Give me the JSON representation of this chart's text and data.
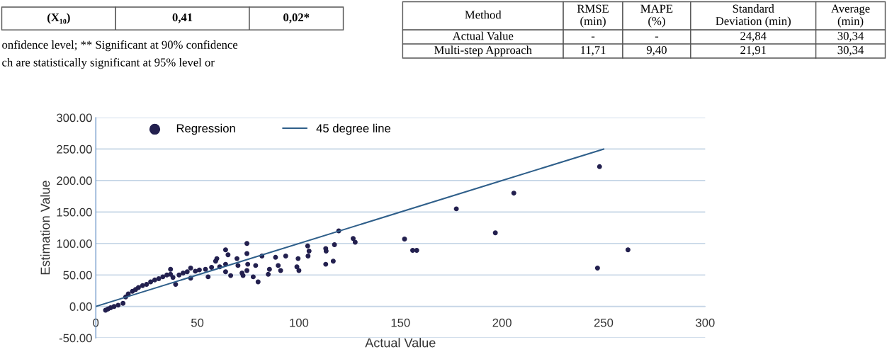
{
  "chart_data": [
    {
      "type": "other",
      "y_categories": [
        "(X₁₀)"
      ],
      "cell_labels": [
        [
          "0,41",
          "0,02*"
        ]
      ],
      "annotations": [
        "onfidence level; ** Significant at 90% confidence",
        "ch are statistically significant at 95% level or"
      ]
    },
    {
      "type": "other",
      "categories": [
        "Method",
        "RMSE\n(min)",
        "MAPE\n(%)",
        "Standard\nDeviation (min)",
        "Average\n(min)"
      ],
      "y_categories": [
        "Actual Value",
        "Multi-step Approach"
      ],
      "cell_labels": [
        [
          "-",
          "-",
          "24,84",
          "30,34"
        ],
        [
          "11,71",
          "9,40",
          "21,91",
          "30,34"
        ]
      ]
    },
    {
      "type": "scatter",
      "xlabel": "Actual Value",
      "ylabel": "Estimation Value",
      "xlim": [
        0,
        300
      ],
      "xticks": [
        0,
        50,
        100,
        150,
        200,
        250,
        300
      ],
      "ylim": [
        -50,
        300
      ],
      "yticks": [
        {
          "value": -50,
          "label": "-50.00"
        },
        {
          "value": 0,
          "label": "0.00"
        },
        {
          "value": 50,
          "label": "50.00"
        },
        {
          "value": 100,
          "label": "100.00"
        },
        {
          "value": 150,
          "label": "150.00"
        },
        {
          "value": 200,
          "label": "200.00"
        },
        {
          "value": 250,
          "label": "250.00"
        },
        {
          "value": 300,
          "label": "300.00"
        }
      ],
      "grid": "y",
      "legend": "top left",
      "series": [
        {
          "name": "Regression",
          "type": "scatter",
          "color": "#23204f",
          "marker": "circle",
          "x": [
            4.8,
            6,
            7.3,
            9,
            11,
            13.4,
            14.7,
            16,
            18,
            19.6,
            21,
            23,
            25,
            27,
            29,
            31,
            33,
            35,
            36.8,
            36.8,
            38,
            39.3,
            41,
            43,
            45,
            46.7,
            46.7,
            49,
            51,
            54,
            55.3,
            57,
            59,
            59.6,
            61,
            63.9,
            63.9,
            63.9,
            65.1,
            66.4,
            69.5,
            70,
            72,
            72.5,
            74.4,
            74.4,
            74.8,
            74.4,
            77.5,
            78.7,
            79.9,
            81.8,
            84.9,
            85.5,
            88.5,
            89.8,
            91,
            93.5,
            99,
            99.6,
            100,
            104.3,
            104.5,
            105,
            113.2,
            113.4,
            113.2,
            116.9,
            117.5,
            119.6,
            126.7,
            127.7,
            152,
            156,
            158,
            177.5,
            196.7,
            205.8,
            247,
            248,
            262
          ],
          "values": [
            -6,
            -4,
            -2,
            0,
            2,
            5,
            15,
            20,
            24,
            27,
            30,
            33,
            35,
            39,
            42,
            44,
            47,
            50,
            59,
            51,
            46,
            35,
            50,
            53,
            55,
            61,
            45,
            56,
            58,
            59,
            47,
            62,
            72,
            76,
            63,
            67,
            55,
            90,
            82,
            49,
            76,
            65,
            53,
            49,
            100,
            84,
            67,
            57,
            47,
            65,
            39,
            80,
            51,
            59,
            78,
            65,
            57,
            80,
            63,
            76,
            57,
            96,
            80,
            88,
            92,
            88,
            67,
            72,
            98,
            120,
            108,
            102,
            107,
            89,
            89,
            155,
            117,
            180,
            61,
            222,
            90
          ]
        },
        {
          "name": "45 degree line",
          "type": "line",
          "color": "#2f5f8a",
          "x": [
            0,
            250
          ],
          "values": [
            0,
            250
          ]
        }
      ]
    }
  ]
}
